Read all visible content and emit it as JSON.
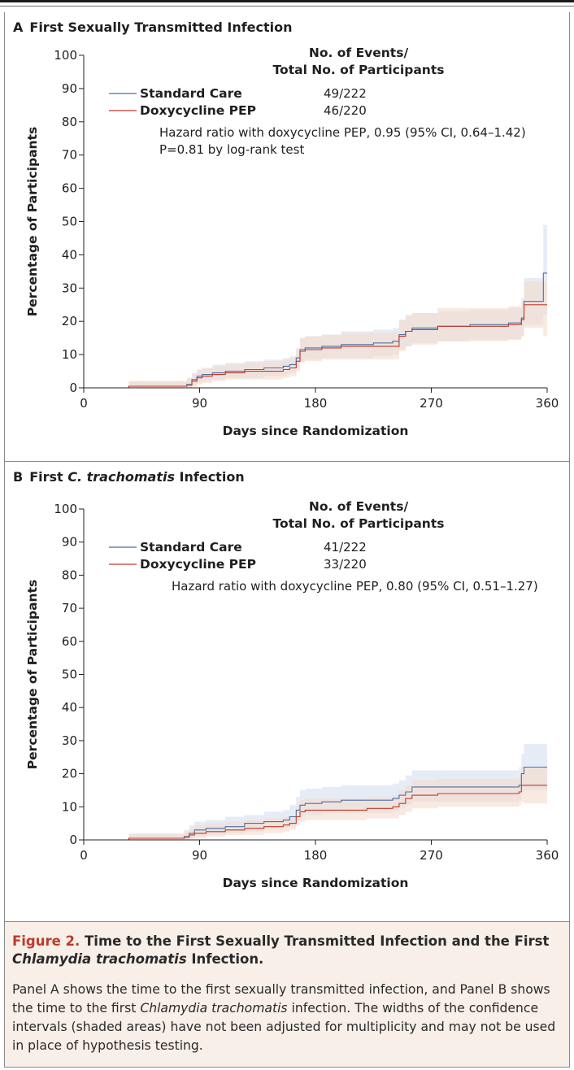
{
  "panels": [
    {
      "letter": "A",
      "title_pre": "First Sexually Transmitted Infection",
      "title_ital": "",
      "title_post": "",
      "ylabel": "Percentage of Participants",
      "xlabel": "Days since Randomization",
      "events_header_1": "No. of Events/",
      "events_header_2": "Total No. of Participants",
      "hazard_text": "Hazard ratio with doxycycline PEP, 0.95 (95% CI, 0.64–1.42)",
      "pvalue_text": "P=0.81 by log-rank test"
    },
    {
      "letter": "B",
      "title_pre": "First ",
      "title_ital": "C. trachomatis",
      "title_post": " Infection",
      "ylabel": "Percentage of Participants",
      "xlabel": "Days since Randomization",
      "events_header_1": "No. of Events/",
      "events_header_2": "Total No. of Participants",
      "hazard_text": "Hazard ratio with doxycycline PEP, 0.80 (95% CI, 0.51–1.27)",
      "pvalue_text": ""
    }
  ],
  "colors": {
    "standard_care": "#4a6fa5",
    "doxycycline": "#c0392b",
    "standard_band": "#d6dff0",
    "doxy_band": "#f5dccd"
  },
  "chart_data": [
    {
      "type": "line",
      "title": "First Sexually Transmitted Infection",
      "xlabel": "Days since Randomization",
      "ylabel": "Percentage of Participants",
      "xlim": [
        0,
        360
      ],
      "ylim": [
        0,
        100
      ],
      "xticks": [
        0,
        90,
        180,
        270,
        360
      ],
      "yticks": [
        0,
        10,
        20,
        30,
        40,
        50,
        60,
        70,
        80,
        90,
        100
      ],
      "legend": "top-left",
      "series": [
        {
          "name": "Standard Care",
          "events": "49/222",
          "x": [
            0,
            35,
            55,
            80,
            84,
            88,
            92,
            100,
            110,
            125,
            140,
            155,
            160,
            165,
            168,
            172,
            185,
            200,
            225,
            240,
            245,
            250,
            255,
            275,
            300,
            330,
            340,
            342,
            355,
            357,
            360
          ],
          "y": [
            0,
            0.5,
            0.5,
            1,
            2.5,
            3.5,
            4,
            4.5,
            5,
            5.5,
            6,
            6.5,
            7,
            9,
            11.5,
            12,
            12.5,
            13,
            13.5,
            14,
            16,
            17,
            18,
            18.5,
            19,
            19.5,
            21,
            26,
            26,
            34.5,
            34.5
          ],
          "ci_lower": [
            0,
            0,
            0,
            0,
            0.5,
            1.5,
            2,
            2.5,
            3,
            3,
            3.5,
            4,
            4.5,
            6,
            8,
            8.5,
            9,
            9,
            9.5,
            10,
            11.5,
            12.5,
            13.5,
            14,
            14.5,
            14.5,
            15.5,
            19,
            19,
            22,
            22
          ],
          "ci_upper": [
            0,
            2,
            2,
            3,
            4.5,
            5.5,
            6,
            7,
            7.5,
            8,
            8.5,
            9,
            9.5,
            12,
            15,
            15.5,
            16,
            17,
            17.5,
            18,
            20.5,
            21.5,
            22.5,
            23,
            23.5,
            24,
            27,
            33,
            33,
            49,
            49
          ]
        },
        {
          "name": "Doxycycline PEP",
          "events": "46/220",
          "x": [
            0,
            35,
            55,
            80,
            84,
            88,
            92,
            100,
            110,
            125,
            140,
            155,
            160,
            165,
            168,
            172,
            185,
            200,
            225,
            240,
            245,
            250,
            255,
            275,
            300,
            330,
            340,
            342,
            355,
            357,
            360
          ],
          "y": [
            0,
            0.5,
            0.5,
            0.8,
            2,
            3,
            3.5,
            4,
            4.5,
            5,
            5,
            5.5,
            6,
            8,
            11,
            11.5,
            12,
            12.5,
            12.5,
            12.5,
            15.5,
            17,
            17.5,
            18.5,
            18.5,
            19,
            20.5,
            25,
            25,
            25,
            25
          ],
          "ci_lower": [
            0,
            0,
            0,
            0,
            0.3,
            1,
            1.5,
            2,
            2.5,
            2.5,
            2.5,
            3,
            3.5,
            5,
            7.5,
            8,
            8.5,
            8.5,
            8.5,
            8.5,
            11,
            12.5,
            13,
            14,
            14,
            14.5,
            15.5,
            18,
            18,
            15.5,
            15.5
          ],
          "ci_upper": [
            0,
            2,
            2,
            3,
            4,
            5.5,
            6,
            6.5,
            7,
            7.5,
            8,
            8.5,
            9,
            11.5,
            15,
            15.5,
            16,
            16.5,
            16.5,
            17,
            20.5,
            22,
            22.5,
            24,
            24,
            24.5,
            26,
            32,
            32,
            32,
            32
          ]
        }
      ]
    },
    {
      "type": "line",
      "title": "First C. trachomatis Infection",
      "xlabel": "Days since Randomization",
      "ylabel": "Percentage of Participants",
      "xlim": [
        0,
        360
      ],
      "ylim": [
        0,
        100
      ],
      "xticks": [
        0,
        90,
        180,
        270,
        360
      ],
      "yticks": [
        0,
        10,
        20,
        30,
        40,
        50,
        60,
        70,
        80,
        90,
        100
      ],
      "legend": "top-left",
      "series": [
        {
          "name": "Standard Care",
          "events": "41/222",
          "x": [
            0,
            35,
            55,
            78,
            82,
            86,
            95,
            110,
            125,
            140,
            155,
            160,
            165,
            168,
            172,
            185,
            200,
            220,
            240,
            245,
            250,
            255,
            275,
            300,
            320,
            338,
            340,
            342,
            360
          ],
          "y": [
            0,
            0.5,
            0.5,
            1,
            2,
            3,
            3.5,
            4,
            5,
            5.5,
            6,
            7,
            9,
            10.5,
            11,
            11.5,
            12,
            12,
            12.5,
            13.5,
            14.5,
            16,
            16,
            16,
            16,
            16.5,
            20,
            22,
            22
          ],
          "ci_lower": [
            0,
            0,
            0,
            0,
            0.5,
            1,
            1.5,
            2,
            2.5,
            3,
            3.5,
            4,
            6,
            7,
            7.5,
            8,
            8,
            8,
            8.5,
            9.5,
            10.5,
            11.5,
            11.5,
            11.5,
            11.5,
            12,
            14.5,
            15,
            15
          ],
          "ci_upper": [
            0,
            2,
            2,
            3,
            4.5,
            5.5,
            6,
            7,
            7.5,
            8.5,
            9,
            10.5,
            13,
            15,
            15.5,
            16,
            16.5,
            16.5,
            17,
            18,
            19.5,
            21,
            21,
            21,
            21,
            22,
            26,
            29,
            29
          ]
        },
        {
          "name": "Doxycycline PEP",
          "events": "33/220",
          "x": [
            0,
            35,
            55,
            78,
            82,
            86,
            95,
            110,
            125,
            140,
            155,
            160,
            165,
            168,
            172,
            185,
            200,
            220,
            240,
            245,
            250,
            255,
            275,
            300,
            320,
            338,
            340,
            342,
            360
          ],
          "y": [
            0,
            0.5,
            0.5,
            0.8,
            1.5,
            2,
            2.5,
            3,
            3.5,
            4,
            4.5,
            5,
            7,
            8.5,
            9,
            9,
            9,
            9.5,
            10,
            11,
            12.5,
            13.5,
            14,
            14,
            14,
            14.5,
            16.5,
            16.5,
            16.5
          ],
          "ci_lower": [
            0,
            0,
            0,
            0,
            0.3,
            0.5,
            1,
            1.5,
            1.5,
            2,
            2.5,
            3,
            4.5,
            5.5,
            6,
            6,
            6,
            6.5,
            6.5,
            7.5,
            8.5,
            9.5,
            10,
            10,
            10,
            10.5,
            11.5,
            11,
            11
          ],
          "ci_upper": [
            0,
            1.8,
            1.8,
            2.5,
            3.5,
            4.5,
            5,
            5.5,
            6,
            6.5,
            7,
            7.5,
            10.5,
            12,
            12.5,
            12.5,
            12.5,
            13,
            13.5,
            15,
            16.5,
            18,
            18.5,
            18.5,
            18.5,
            19,
            22,
            22,
            22
          ]
        }
      ]
    }
  ],
  "caption": {
    "figure_label": "Figure 2.",
    "title_1": " Time to the First Sexually Transmitted Infection and the First ",
    "title_ital": "Chlamydia trachomatis",
    "title_2": " Infection.",
    "body_1": "Panel A shows the time to the first sexually transmitted infection, and Panel B shows the time to the first ",
    "body_ital": "Chlamydia trachomatis",
    "body_2": " infection. The widths of the confidence intervals (shaded areas) have not been adjusted for multiplicity and may not be used in place of hypothesis testing."
  }
}
